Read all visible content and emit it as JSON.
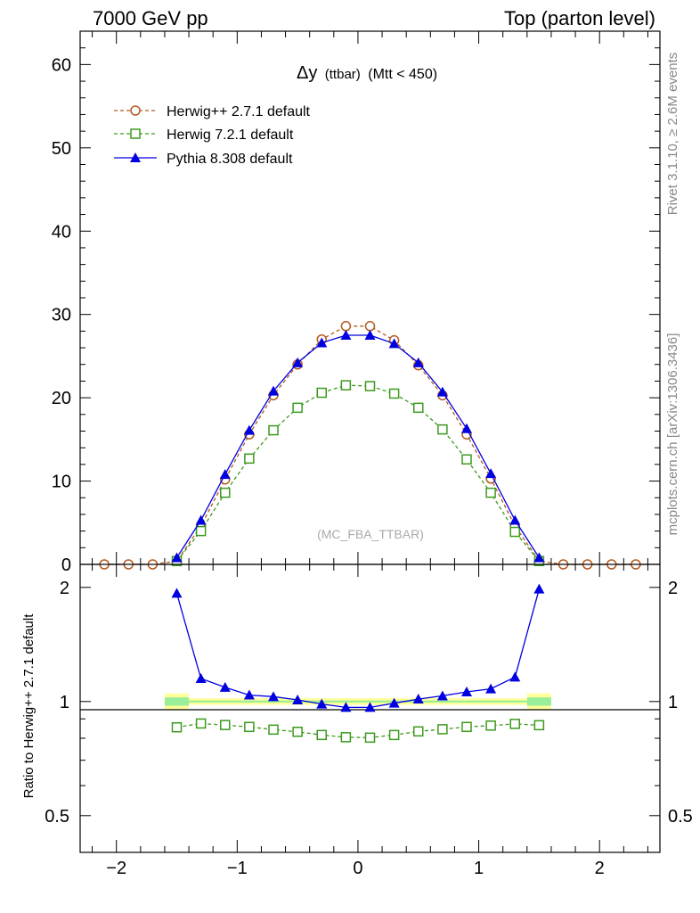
{
  "header": {
    "left": "7000 GeV pp",
    "right": "Top (parton level)"
  },
  "side_labels": {
    "rivet": "Rivet 3.1.10, ≥ 2.6M events",
    "mcplots": "mcplots.cern.ch [arXiv:1306.3436]"
  },
  "main_plot": {
    "title_symbol": "Δy",
    "title_small": "(ttbar)",
    "title_cut": "(Mtt < 450)",
    "watermark": "(MC_FBA_TTBAR)"
  },
  "ratio_plot": {
    "ylabel": "Ratio to Herwig++ 2.7.1 default"
  },
  "colors": {
    "herwigpp": "#b35a1f",
    "herwig7": "#3c9a1e",
    "pythia": "#0000e0",
    "band_yellow": "#ffff99",
    "band_green": "#99ee99"
  },
  "chart_data": [
    {
      "type": "line",
      "xlim": [
        -2.3,
        2.5
      ],
      "ylim": [
        0,
        64
      ],
      "xticks": [
        -2,
        -1,
        0,
        1,
        2
      ],
      "yticks": [
        0,
        10,
        20,
        30,
        40,
        50,
        60
      ],
      "legend": {
        "placement": "top-left"
      },
      "series": [
        {
          "name": "Herwig++ 2.7.1 default",
          "marker": "open-circle",
          "line": "dashed",
          "x": [
            -2.1,
            -1.9,
            -1.7,
            -1.5,
            -1.3,
            -1.1,
            -0.9,
            -0.7,
            -0.5,
            -0.3,
            -0.1,
            0.1,
            0.3,
            0.5,
            0.7,
            0.9,
            1.1,
            1.3,
            1.5,
            1.7,
            1.9,
            2.1,
            2.3
          ],
          "y": [
            0,
            0,
            0,
            0.4,
            4.6,
            10.2,
            15.6,
            20.3,
            24.0,
            27.0,
            28.6,
            28.6,
            26.9,
            23.9,
            20.3,
            15.6,
            10.3,
            4.6,
            0.4,
            0,
            0,
            0,
            0
          ]
        },
        {
          "name": "Herwig 7.2.1 default",
          "marker": "open-square",
          "line": "dashed",
          "x": [
            -1.5,
            -1.3,
            -1.1,
            -0.9,
            -0.7,
            -0.5,
            -0.3,
            -0.1,
            0.1,
            0.3,
            0.5,
            0.7,
            0.9,
            1.1,
            1.3,
            1.5
          ],
          "y": [
            0.4,
            4.0,
            8.6,
            12.7,
            16.1,
            18.8,
            20.6,
            21.5,
            21.4,
            20.5,
            18.8,
            16.2,
            12.6,
            8.6,
            3.9,
            0.4
          ]
        },
        {
          "name": "Pythia 8.308 default",
          "marker": "filled-triangle",
          "line": "solid",
          "x": [
            -1.5,
            -1.3,
            -1.1,
            -0.9,
            -0.7,
            -0.5,
            -0.3,
            -0.1,
            0.1,
            0.3,
            0.5,
            0.7,
            0.9,
            1.1,
            1.3,
            1.5
          ],
          "y": [
            0.8,
            5.3,
            10.8,
            16.1,
            20.8,
            24.2,
            26.6,
            27.5,
            27.5,
            26.5,
            24.2,
            20.7,
            16.3,
            10.9,
            5.3,
            0.8
          ]
        }
      ]
    },
    {
      "type": "line",
      "xlim": [
        -2.3,
        2.5
      ],
      "ylim": [
        0.4,
        2.3
      ],
      "xticks": [
        -2,
        -1,
        0,
        1,
        2
      ],
      "yticks": [
        0.5,
        1,
        2
      ],
      "yticklabels": [
        "0.5",
        "1",
        "2"
      ],
      "ylabel": "Ratio to Herwig++ 2.7.1 default",
      "reference_line": 1,
      "band_x": [
        -1.6,
        1.6
      ],
      "series": [
        {
          "name": "Herwig 7.2.1 default",
          "marker": "open-square",
          "line": "dashed",
          "x": [
            -1.5,
            -1.3,
            -1.1,
            -0.9,
            -0.7,
            -0.5,
            -0.3,
            -0.1,
            0.1,
            0.3,
            0.5,
            0.7,
            0.9,
            1.1,
            1.3,
            1.5
          ],
          "y": [
            0.855,
            0.875,
            0.867,
            0.857,
            0.843,
            0.832,
            0.816,
            0.805,
            0.803,
            0.816,
            0.834,
            0.845,
            0.857,
            0.864,
            0.873,
            0.866
          ]
        },
        {
          "name": "Pythia 8.308 default",
          "marker": "filled-triangle",
          "line": "solid",
          "x": [
            -1.5,
            -1.3,
            -1.1,
            -0.9,
            -0.7,
            -0.5,
            -0.3,
            -0.1,
            0.1,
            0.3,
            0.5,
            0.7,
            0.9,
            1.1,
            1.3,
            1.5
          ],
          "y": [
            1.93,
            1.15,
            1.09,
            1.04,
            1.03,
            1.01,
            0.985,
            0.965,
            0.965,
            0.99,
            1.015,
            1.035,
            1.06,
            1.08,
            1.16,
            1.98
          ]
        }
      ]
    }
  ]
}
